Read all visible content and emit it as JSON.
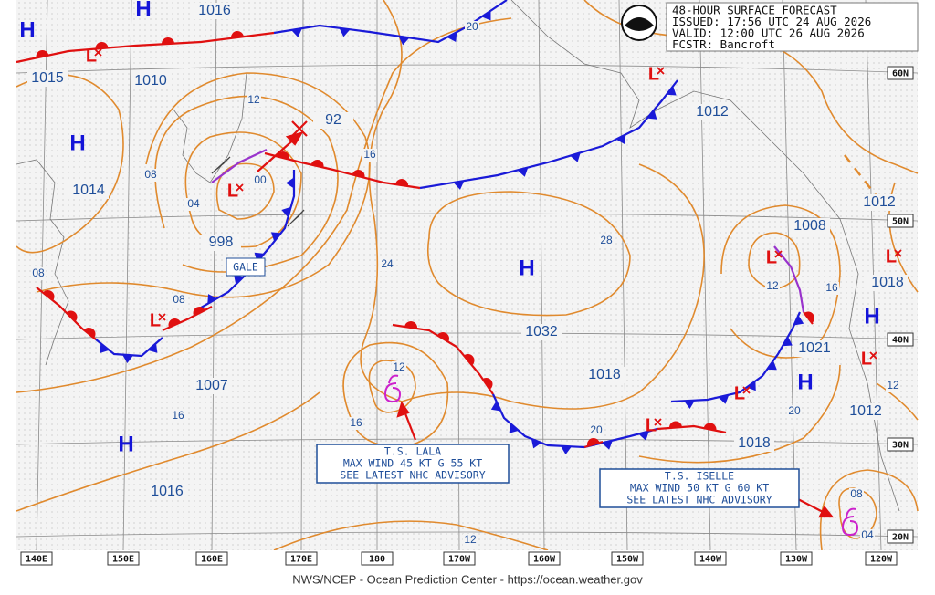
{
  "header": {
    "lines": [
      "48-HOUR SURFACE FORECAST",
      "ISSUED: 17:56 UTC 24 AUG 2026",
      "VALID:  12:00 UTC 26 AUG 2026",
      "FCSTR:  Bancroft"
    ]
  },
  "footer": "NWS/NCEP - Ocean Prediction Center - https://ocean.weather.gov",
  "longitudes": [
    "140E",
    "150E",
    "160E",
    "170E",
    "180",
    "170W",
    "160W",
    "150W",
    "140W",
    "130W",
    "120W"
  ],
  "latitudes": [
    "60N",
    "50N",
    "40N",
    "30N",
    "20N"
  ],
  "highs": [
    "H",
    "H",
    "H",
    "H",
    "H",
    "H",
    "H"
  ],
  "lows": [
    "L",
    "L",
    "L",
    "L",
    "L",
    "L",
    "L",
    "L",
    "L"
  ],
  "pressures": [
    "1016",
    "1015",
    "1010",
    "1014",
    "998",
    "1007",
    "1016",
    "92",
    "1032",
    "1018",
    "1012",
    "1008",
    "1012",
    "1018",
    "1021",
    "1012",
    "1018"
  ],
  "isobar_labels": [
    "20",
    "12",
    "16",
    "08",
    "04",
    "00",
    "24",
    "28",
    "08",
    "08",
    "12",
    "16",
    "12",
    "16",
    "16",
    "20",
    "20",
    "12",
    "12",
    "08",
    "04"
  ],
  "gale": "GALE",
  "storms": [
    {
      "lines": [
        "T.S. LALA",
        "MAX WIND 45 KT G 55 KT",
        "SEE LATEST NHC ADVISORY"
      ]
    },
    {
      "lines": [
        "T.S. ISELLE",
        "MAX WIND 50 KT G 60 KT",
        "SEE LATEST NHC ADVISORY"
      ]
    }
  ]
}
